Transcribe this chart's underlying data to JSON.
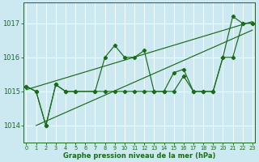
{
  "title": "Graphe pression niveau de la mer (hPa)",
  "bg_color": "#cce8f0",
  "line_color": "#1a6b1a",
  "ylim": [
    1013.5,
    1017.6
  ],
  "yticks": [
    1014,
    1015,
    1016,
    1017
  ],
  "xlim": [
    -0.3,
    23.3
  ],
  "x_all": [
    0,
    1,
    2,
    3,
    4,
    5,
    7,
    8,
    9,
    10,
    11,
    12,
    13,
    14,
    15,
    16,
    17,
    18,
    19,
    20,
    21,
    22,
    23
  ],
  "series1": [
    1015.15,
    1015.0,
    1014.0,
    1015.2,
    1015.0,
    1015.0,
    1015.0,
    1016.0,
    1016.35,
    1016.0,
    1016.0,
    1016.2,
    1015.0,
    1015.0,
    1015.55,
    1015.65,
    1015.0,
    1015.0,
    1015.0,
    1016.0,
    1017.2,
    1017.0,
    1017.0
  ],
  "series2": [
    1015.15,
    1015.0,
    1014.0,
    1015.2,
    1015.0,
    1015.0,
    1015.0,
    1015.0,
    1015.0,
    1015.0,
    1015.0,
    1015.0,
    1015.0,
    1015.0,
    1015.0,
    1015.45,
    1015.0,
    1015.0,
    1015.0,
    1016.0,
    1016.0,
    1017.0,
    1017.0
  ],
  "trend1_x": [
    0,
    23
  ],
  "trend1_y": [
    1015.05,
    1017.05
  ],
  "trend2_x": [
    1,
    23
  ],
  "trend2_y": [
    1014.0,
    1016.8
  ],
  "xlabel_fontsize": 6.0,
  "ytick_fontsize": 6.0,
  "xtick_fontsize": 4.8
}
